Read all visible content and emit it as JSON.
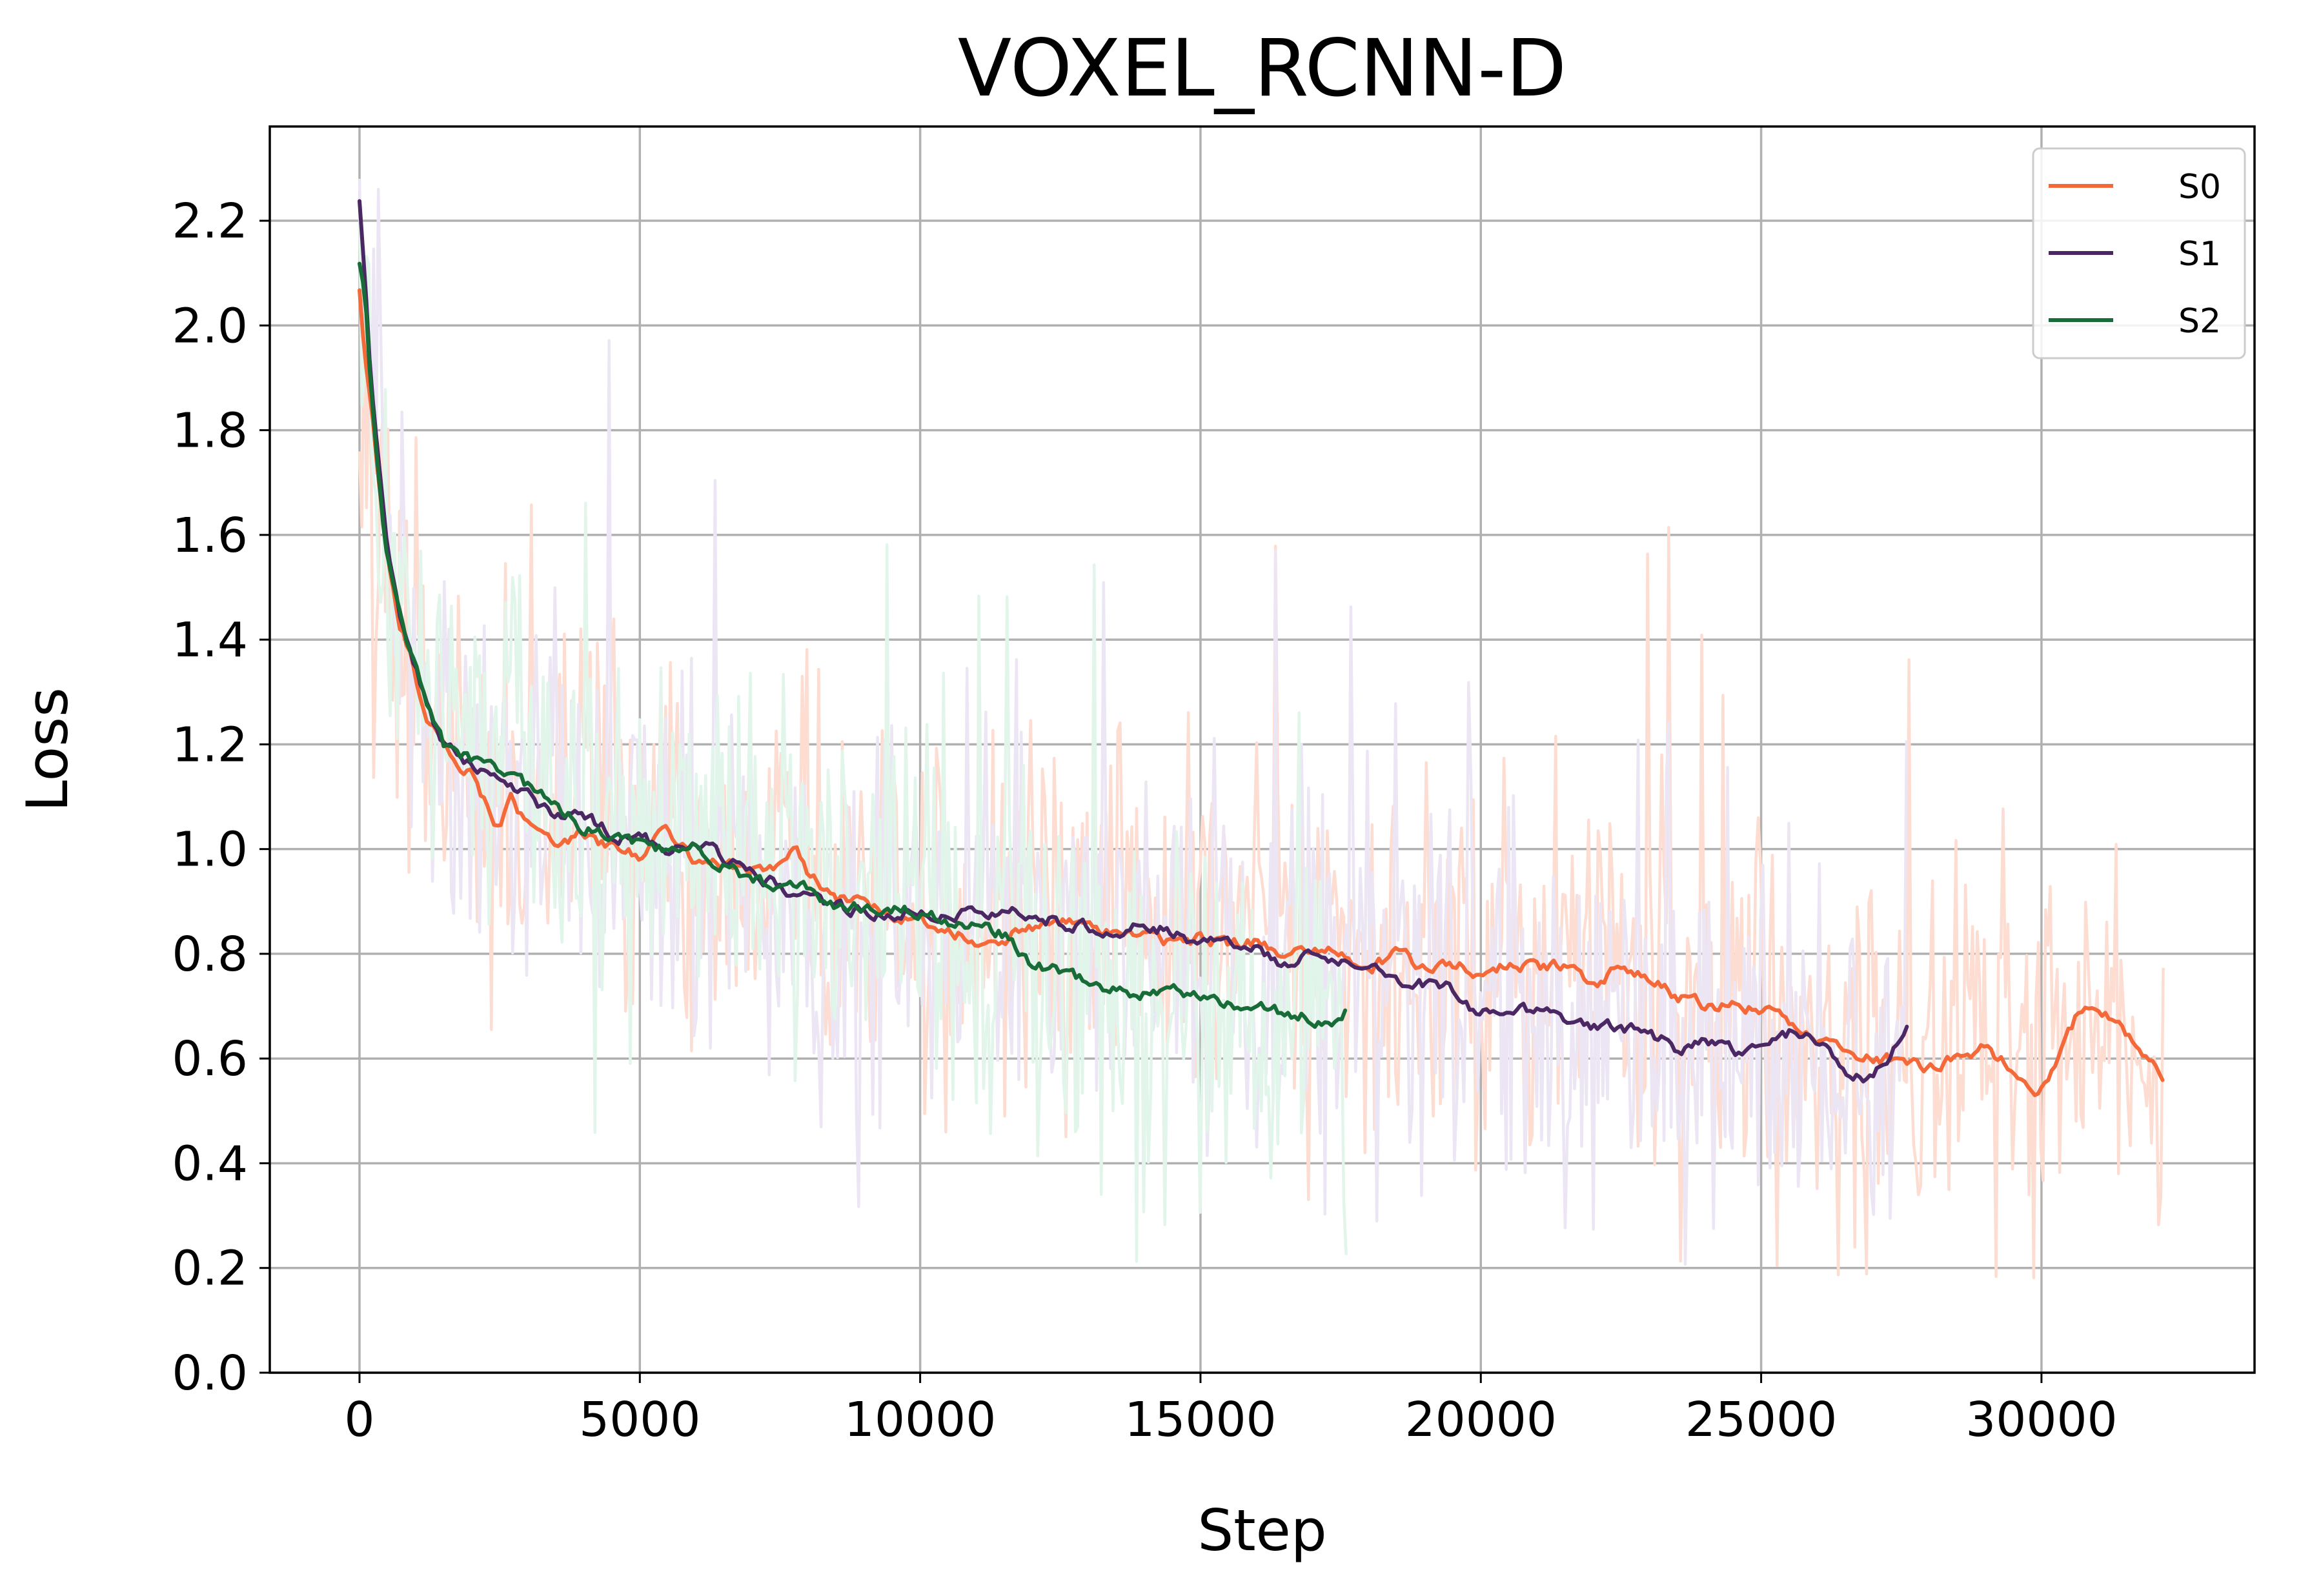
{
  "chart_data": {
    "type": "line",
    "title": "VOXEL_RCNN-D",
    "xlabel": "Step",
    "ylabel": "Loss",
    "xlim": [
      -1600,
      33800
    ],
    "ylim": [
      0.0,
      2.38
    ],
    "xticks": [
      0,
      5000,
      10000,
      15000,
      20000,
      25000,
      30000
    ],
    "yticks": [
      0.0,
      0.2,
      0.4,
      0.6,
      0.8,
      1.0,
      1.2,
      1.4,
      1.6,
      1.8,
      2.0,
      2.2
    ],
    "xtick_labels": [
      "0",
      "5000",
      "10000",
      "15000",
      "20000",
      "25000",
      "30000"
    ],
    "ytick_labels": [
      "0.0",
      "0.2",
      "0.4",
      "0.6",
      "0.8",
      "1.0",
      "1.2",
      "1.4",
      "1.6",
      "1.8",
      "2.0",
      "2.2"
    ],
    "grid": true,
    "legend_position": "top-right",
    "series": [
      {
        "name": "S0",
        "color": "#f4693a",
        "raw_color": "#fddcd2",
        "x": [
          0,
          100,
          200,
          350,
          500,
          700,
          900,
          1200,
          1500,
          2000,
          2500,
          2700,
          3000,
          3500,
          4000,
          4500,
          5000,
          5500,
          6000,
          6500,
          7000,
          7500,
          7800,
          8000,
          8500,
          9000,
          9500,
          10000,
          10500,
          11000,
          11500,
          12000,
          12500,
          13000,
          13500,
          14000,
          14500,
          15000,
          15500,
          16000,
          16500,
          17000,
          17500,
          18000,
          18500,
          19000,
          19500,
          20000,
          20500,
          21000,
          21500,
          22000,
          22500,
          23000,
          23500,
          24000,
          24500,
          25000,
          25500,
          26000,
          26500,
          27000,
          27500,
          28000,
          28500,
          29000,
          29500,
          29900,
          30300,
          30700,
          31000,
          31400,
          31700,
          32000,
          32200
        ],
        "y": [
          2.07,
          1.93,
          1.86,
          1.7,
          1.56,
          1.42,
          1.38,
          1.25,
          1.2,
          1.14,
          1.04,
          1.09,
          1.04,
          1.02,
          1.03,
          1.0,
          0.99,
          1.04,
          0.98,
          0.97,
          0.96,
          0.97,
          1.0,
          0.95,
          0.9,
          0.9,
          0.87,
          0.87,
          0.85,
          0.82,
          0.83,
          0.85,
          0.86,
          0.85,
          0.84,
          0.84,
          0.82,
          0.83,
          0.82,
          0.82,
          0.8,
          0.8,
          0.8,
          0.77,
          0.8,
          0.77,
          0.78,
          0.76,
          0.78,
          0.77,
          0.78,
          0.74,
          0.77,
          0.75,
          0.72,
          0.7,
          0.7,
          0.7,
          0.66,
          0.63,
          0.62,
          0.6,
          0.6,
          0.58,
          0.6,
          0.62,
          0.58,
          0.54,
          0.6,
          0.7,
          0.68,
          0.67,
          0.63,
          0.59,
          0.55
        ]
      },
      {
        "name": "S1",
        "color": "#4b2864",
        "raw_color": "#ece5f4",
        "x": [
          0,
          100,
          200,
          350,
          500,
          700,
          900,
          1200,
          1500,
          2000,
          2500,
          3000,
          3500,
          4000,
          4500,
          5000,
          5500,
          6000,
          6500,
          7000,
          7500,
          8000,
          8500,
          9000,
          9500,
          10000,
          10500,
          11000,
          11500,
          12000,
          12500,
          13000,
          13500,
          14000,
          14500,
          15000,
          15500,
          16000,
          16500,
          17000,
          17500,
          18000,
          18500,
          19000,
          19500,
          20000,
          20500,
          21000,
          21500,
          22000,
          22500,
          23000,
          23500,
          24000,
          24500,
          25000,
          25500,
          26000,
          26500,
          27000,
          27300,
          27600
        ],
        "y": [
          2.24,
          2.08,
          1.9,
          1.72,
          1.56,
          1.45,
          1.4,
          1.27,
          1.2,
          1.16,
          1.13,
          1.1,
          1.06,
          1.06,
          1.03,
          1.02,
          1.0,
          1.02,
          0.98,
          0.95,
          0.93,
          0.91,
          0.89,
          0.88,
          0.88,
          0.88,
          0.87,
          0.88,
          0.88,
          0.88,
          0.86,
          0.85,
          0.84,
          0.86,
          0.84,
          0.81,
          0.83,
          0.81,
          0.78,
          0.8,
          0.78,
          0.78,
          0.74,
          0.74,
          0.73,
          0.68,
          0.7,
          0.69,
          0.67,
          0.66,
          0.66,
          0.65,
          0.62,
          0.63,
          0.61,
          0.63,
          0.65,
          0.63,
          0.57,
          0.56,
          0.6,
          0.66
        ]
      },
      {
        "name": "S2",
        "color": "#176c37",
        "raw_color": "#e1f5ea",
        "x": [
          0,
          100,
          200,
          350,
          500,
          700,
          900,
          1200,
          1500,
          2000,
          2500,
          3000,
          3500,
          4000,
          4500,
          5000,
          5500,
          6000,
          6500,
          7000,
          7500,
          8000,
          8500,
          9000,
          9500,
          10000,
          10500,
          11000,
          11500,
          12000,
          12500,
          13000,
          13500,
          14000,
          14500,
          15000,
          15500,
          16000,
          16500,
          17000,
          17300,
          17600
        ],
        "y": [
          2.12,
          2.05,
          1.88,
          1.7,
          1.55,
          1.45,
          1.38,
          1.28,
          1.2,
          1.17,
          1.15,
          1.12,
          1.08,
          1.04,
          1.03,
          1.01,
          1.0,
          1.0,
          0.97,
          0.94,
          0.93,
          0.93,
          0.89,
          0.89,
          0.89,
          0.88,
          0.86,
          0.86,
          0.84,
          0.78,
          0.77,
          0.74,
          0.73,
          0.72,
          0.73,
          0.72,
          0.7,
          0.69,
          0.69,
          0.68,
          0.67,
          0.69
        ]
      }
    ]
  }
}
